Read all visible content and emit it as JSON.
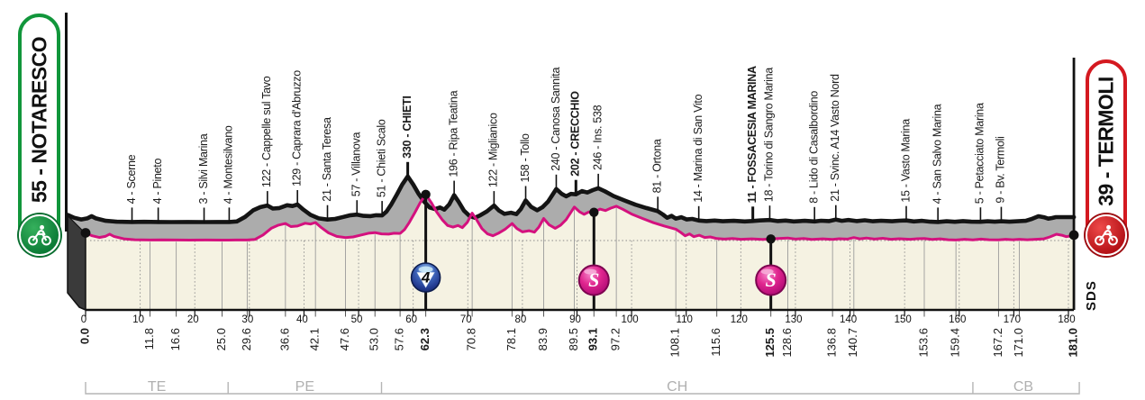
{
  "stage": {
    "start": {
      "code": "55",
      "name": "NOTARESCO",
      "label": "55 - NOTARESCO",
      "color": "#11963b"
    },
    "finish": {
      "code": "39",
      "name": "TERMOLI",
      "label": "39 - TERMOLI",
      "color": "#d41920"
    },
    "branding": "SDS"
  },
  "colors": {
    "profile_line": "#141414",
    "gradient_line": "#d4117e",
    "band_fill": "#acacac",
    "plot_fill": "#f5f2e2",
    "grid": "#8a8a8a",
    "province_text": "#b0b0b0",
    "climb_icon_blue": "#2b4ea6",
    "sprint_icon_pink": "#d6258f"
  },
  "chart_data": {
    "type": "area",
    "title": "Stage altimetry Notaresco - Termoli",
    "x_unit": "km",
    "y_unit": "m",
    "xlim": [
      0,
      181
    ],
    "total_km": "181.0",
    "km_axis_ticks": [
      0,
      10,
      20,
      30,
      40,
      50,
      60,
      70,
      80,
      90,
      100,
      110,
      120,
      130,
      140,
      150,
      160,
      170,
      180
    ],
    "towns": [
      {
        "label": "4 - Scerne",
        "km": 11.8,
        "elevation_m": 4,
        "bold": false
      },
      {
        "label": "4 - Pineto",
        "km": 16.6,
        "elevation_m": 4,
        "bold": false
      },
      {
        "label": "3 - Silvi Marina",
        "km": 25.0,
        "elevation_m": 3,
        "bold": false
      },
      {
        "label": "4 - Montesilvano",
        "km": 29.6,
        "elevation_m": 4,
        "bold": false
      },
      {
        "label": "122 - Cappelle sul Tavo",
        "km": 36.6,
        "elevation_m": 122,
        "bold": false
      },
      {
        "label": "129 - Caprara d'Abruzzo",
        "km": 42.1,
        "elevation_m": 129,
        "bold": false
      },
      {
        "label": "21 - Santa Teresa",
        "km": 47.6,
        "elevation_m": 21,
        "bold": false
      },
      {
        "label": "57 - Villanova",
        "km": 53.0,
        "elevation_m": 57,
        "bold": false
      },
      {
        "label": "51 - Chieti Scalo",
        "km": 57.6,
        "elevation_m": 51,
        "bold": false
      },
      {
        "label": "330 - CHIETI",
        "km": 62.3,
        "elevation_m": 330,
        "bold": true
      },
      {
        "label": "196 - Ripa Teatina",
        "km": 70.8,
        "elevation_m": 196,
        "bold": false
      },
      {
        "label": "122 - Miglianico",
        "km": 78.1,
        "elevation_m": 122,
        "bold": false
      },
      {
        "label": "158 - Tollo",
        "km": 83.9,
        "elevation_m": 158,
        "bold": false
      },
      {
        "label": "240 - Canosa Sannita",
        "km": 89.5,
        "elevation_m": 240,
        "bold": false
      },
      {
        "label": "202 - CRECCHIO",
        "km": 93.1,
        "elevation_m": 202,
        "bold": true
      },
      {
        "label": "246 - Ins. 538",
        "km": 97.2,
        "elevation_m": 246,
        "bold": false
      },
      {
        "label": "81 - Ortona",
        "km": 108.1,
        "elevation_m": 81,
        "bold": false
      },
      {
        "label": "14 - Marina di San Vito",
        "km": 115.6,
        "elevation_m": 14,
        "bold": false
      },
      {
        "label": "11 - FOSSACESIA MARINA",
        "km": 125.5,
        "elevation_m": 11,
        "bold": true
      },
      {
        "label": "18 - Torino di Sangro Marina",
        "km": 128.6,
        "elevation_m": 18,
        "bold": false
      },
      {
        "label": "8 - Lido di Casalbordino",
        "km": 136.8,
        "elevation_m": 8,
        "bold": false
      },
      {
        "label": "21 - Svinc. A14 Vasto Nord",
        "km": 140.7,
        "elevation_m": 21,
        "bold": false
      },
      {
        "label": "15 - Vasto Marina",
        "km": 153.6,
        "elevation_m": 15,
        "bold": false
      },
      {
        "label": "4 - San Salvo Marina",
        "km": 159.4,
        "elevation_m": 4,
        "bold": false
      },
      {
        "label": "5 - Petacciato Marina",
        "km": 167.2,
        "elevation_m": 5,
        "bold": false
      },
      {
        "label": "9 - Bv. Termoli",
        "km": 171.0,
        "elevation_m": 9,
        "bold": false
      }
    ],
    "distance_labels": [
      {
        "value": "0.0",
        "km": 0,
        "bold": true
      },
      {
        "value": "11.8",
        "km": 11.8,
        "bold": false
      },
      {
        "value": "16.6",
        "km": 16.6,
        "bold": false
      },
      {
        "value": "25.0",
        "km": 25.0,
        "bold": false
      },
      {
        "value": "29.6",
        "km": 29.6,
        "bold": false
      },
      {
        "value": "36.6",
        "km": 36.6,
        "bold": false
      },
      {
        "value": "42.1",
        "km": 42.1,
        "bold": false
      },
      {
        "value": "47.6",
        "km": 47.6,
        "bold": false
      },
      {
        "value": "53.0",
        "km": 53.0,
        "bold": false
      },
      {
        "value": "57.6",
        "km": 57.6,
        "bold": false
      },
      {
        "value": "62.3",
        "km": 62.3,
        "bold": true
      },
      {
        "value": "70.8",
        "km": 70.8,
        "bold": false
      },
      {
        "value": "78.1",
        "km": 78.1,
        "bold": false
      },
      {
        "value": "83.9",
        "km": 83.9,
        "bold": false
      },
      {
        "value": "89.5",
        "km": 89.5,
        "bold": false
      },
      {
        "value": "93.1",
        "km": 93.1,
        "bold": true
      },
      {
        "value": "97.2",
        "km": 97.2,
        "bold": false
      },
      {
        "value": "108.1",
        "km": 108.1,
        "bold": false
      },
      {
        "value": "115.6",
        "km": 115.6,
        "bold": false
      },
      {
        "value": "125.5",
        "km": 125.5,
        "bold": true
      },
      {
        "value": "128.6",
        "km": 128.6,
        "bold": false
      },
      {
        "value": "136.8",
        "km": 136.8,
        "bold": false
      },
      {
        "value": "140.7",
        "km": 140.7,
        "bold": false
      },
      {
        "value": "153.6",
        "km": 153.6,
        "bold": false
      },
      {
        "value": "159.4",
        "km": 159.4,
        "bold": false
      },
      {
        "value": "167.2",
        "km": 167.2,
        "bold": false
      },
      {
        "value": "171.0",
        "km": 171.0,
        "bold": false
      },
      {
        "value": "181.0",
        "km": 181,
        "bold": true
      }
    ],
    "climbs": [
      {
        "name": "CHIETI",
        "km": 62.3,
        "category": "4"
      }
    ],
    "sprints": [
      {
        "symbol": "S",
        "name": "CRECCHIO",
        "km": 93.1
      },
      {
        "symbol": "S",
        "name": "FOSSACESIA MARINA",
        "km": 125.5
      }
    ],
    "provinces": [
      {
        "code": "TE",
        "from": 0,
        "to": 26.1
      },
      {
        "code": "PE",
        "from": 26.1,
        "to": 54.2
      },
      {
        "code": "CH",
        "from": 54.2,
        "to": 162.5
      },
      {
        "code": "CB",
        "from": 162.5,
        "to": 181
      }
    ],
    "start_point": {
      "km": 0,
      "elevation_m": 55
    },
    "finish_point": {
      "km": 181,
      "elevation_m": 39
    },
    "profile": [
      [
        0,
        55
      ],
      [
        1.2,
        34
      ],
      [
        2.5,
        22
      ],
      [
        3.6,
        30
      ],
      [
        4.4,
        46
      ],
      [
        5.2,
        30
      ],
      [
        7,
        12
      ],
      [
        9,
        6
      ],
      [
        11.8,
        4
      ],
      [
        14,
        5
      ],
      [
        16.6,
        4
      ],
      [
        19,
        3
      ],
      [
        22,
        4
      ],
      [
        25,
        3
      ],
      [
        27.5,
        4
      ],
      [
        29.6,
        4
      ],
      [
        31,
        8
      ],
      [
        32.5,
        40
      ],
      [
        34,
        88
      ],
      [
        35.3,
        110
      ],
      [
        36.6,
        122
      ],
      [
        37.6,
        100
      ],
      [
        38.8,
        104
      ],
      [
        40.2,
        124
      ],
      [
        41.2,
        118
      ],
      [
        42.1,
        129
      ],
      [
        43.2,
        92
      ],
      [
        44.5,
        55
      ],
      [
        46,
        30
      ],
      [
        47.6,
        21
      ],
      [
        49,
        26
      ],
      [
        50.5,
        40
      ],
      [
        51.8,
        52
      ],
      [
        53,
        57
      ],
      [
        54.2,
        48
      ],
      [
        55.5,
        46
      ],
      [
        56.5,
        52
      ],
      [
        57.6,
        51
      ],
      [
        58.4,
        78
      ],
      [
        59.3,
        130
      ],
      [
        60.3,
        200
      ],
      [
        61.3,
        272
      ],
      [
        62.3,
        330
      ],
      [
        63.3,
        272
      ],
      [
        64.3,
        205
      ],
      [
        65.3,
        150
      ],
      [
        66.3,
        108
      ],
      [
        67.3,
        96
      ],
      [
        68.2,
        108
      ],
      [
        69,
        92
      ],
      [
        69.9,
        130
      ],
      [
        70.8,
        196
      ],
      [
        71.6,
        150
      ],
      [
        72.6,
        85
      ],
      [
        73.6,
        48
      ],
      [
        74.6,
        34
      ],
      [
        75.6,
        52
      ],
      [
        76.8,
        80
      ],
      [
        78.1,
        122
      ],
      [
        79,
        86
      ],
      [
        80,
        62
      ],
      [
        81.2,
        70
      ],
      [
        82.2,
        60
      ],
      [
        83,
        96
      ],
      [
        83.9,
        158
      ],
      [
        84.9,
        112
      ],
      [
        86,
        88
      ],
      [
        87,
        110
      ],
      [
        88,
        150
      ],
      [
        89.5,
        240
      ],
      [
        90.5,
        205
      ],
      [
        91.3,
        188
      ],
      [
        92.2,
        205
      ],
      [
        93.1,
        202
      ],
      [
        94.2,
        225
      ],
      [
        95.2,
        215
      ],
      [
        96.2,
        232
      ],
      [
        97.2,
        246
      ],
      [
        98.4,
        224
      ],
      [
        100,
        190
      ],
      [
        102,
        158
      ],
      [
        104,
        128
      ],
      [
        106,
        104
      ],
      [
        108.1,
        81
      ],
      [
        109,
        58
      ],
      [
        109.8,
        34
      ],
      [
        110.6,
        48
      ],
      [
        111.4,
        28
      ],
      [
        112.4,
        38
      ],
      [
        113.4,
        22
      ],
      [
        114.4,
        26
      ],
      [
        115.6,
        14
      ],
      [
        117,
        10
      ],
      [
        118.5,
        14
      ],
      [
        120,
        9
      ],
      [
        122,
        12
      ],
      [
        124,
        8
      ],
      [
        125.5,
        11
      ],
      [
        126.8,
        15
      ],
      [
        128.6,
        18
      ],
      [
        130,
        10
      ],
      [
        131.5,
        14
      ],
      [
        133,
        8
      ],
      [
        135,
        12
      ],
      [
        136.8,
        8
      ],
      [
        138,
        13
      ],
      [
        139.5,
        10
      ],
      [
        140.7,
        21
      ],
      [
        141.8,
        12
      ],
      [
        143,
        18
      ],
      [
        144.5,
        10
      ],
      [
        146,
        16
      ],
      [
        147.5,
        9
      ],
      [
        149,
        13
      ],
      [
        151,
        9
      ],
      [
        152.3,
        13
      ],
      [
        153.6,
        15
      ],
      [
        155,
        8
      ],
      [
        156.5,
        12
      ],
      [
        158,
        6
      ],
      [
        159.4,
        4
      ],
      [
        161,
        9
      ],
      [
        162.5,
        5
      ],
      [
        164,
        10
      ],
      [
        165.5,
        6
      ],
      [
        167.2,
        5
      ],
      [
        168.5,
        9
      ],
      [
        169.8,
        6
      ],
      [
        171,
        9
      ],
      [
        172.5,
        6
      ],
      [
        174,
        9
      ],
      [
        175.5,
        12
      ],
      [
        176.6,
        26
      ],
      [
        177.8,
        45
      ],
      [
        178.8,
        38
      ],
      [
        179.6,
        28
      ],
      [
        180.3,
        32
      ],
      [
        181,
        39
      ]
    ]
  }
}
